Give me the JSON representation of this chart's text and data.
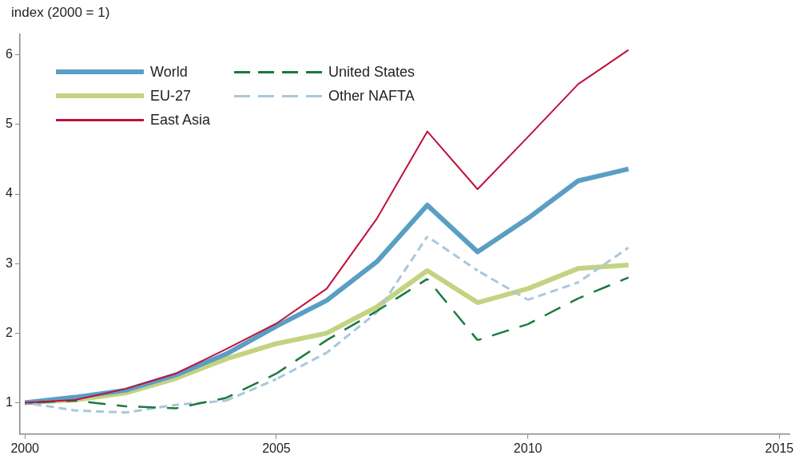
{
  "chart_data": {
    "type": "line",
    "ylabel": "index (2000 = 1)",
    "x": [
      2000,
      2001,
      2002,
      2003,
      2004,
      2005,
      2006,
      2007,
      2008,
      2009,
      2010,
      2011,
      2012
    ],
    "xlim": [
      1999.9,
      2015.2
    ],
    "xticks": [
      2000,
      2005,
      2010,
      2015
    ],
    "ylim": [
      0.55,
      6.3
    ],
    "yticks": [
      1,
      2,
      3,
      4,
      5,
      6
    ],
    "grid": false,
    "legend": "top left",
    "marker": "none",
    "series": [
      {
        "name": "World",
        "color": "#5b9ec4",
        "line_style": "solid",
        "values": [
          1.0,
          1.08,
          1.18,
          1.4,
          1.7,
          2.1,
          2.47,
          3.03,
          3.84,
          3.17,
          3.65,
          4.19,
          4.36
        ]
      },
      {
        "name": "EU-27",
        "color": "#c3d382",
        "line_style": "solid",
        "values": [
          1.0,
          1.04,
          1.14,
          1.35,
          1.63,
          1.85,
          2.0,
          2.38,
          2.9,
          2.44,
          2.64,
          2.93,
          2.98
        ]
      },
      {
        "name": "East Asia",
        "color": "#c0103c",
        "line_style": "solid",
        "values": [
          1.0,
          1.04,
          1.2,
          1.42,
          1.77,
          2.14,
          2.64,
          3.65,
          4.9,
          4.07,
          4.82,
          5.58,
          6.07
        ]
      },
      {
        "name": "United States",
        "color": "#1a7a3e",
        "line_style": "dashed",
        "values": [
          1.0,
          1.03,
          0.95,
          0.92,
          1.07,
          1.42,
          1.9,
          2.32,
          2.78,
          1.9,
          2.13,
          2.5,
          2.8
        ]
      },
      {
        "name": "Other NAFTA",
        "color": "#a8c8dc",
        "line_style": "dashed",
        "values": [
          1.0,
          0.89,
          0.86,
          0.97,
          1.03,
          1.34,
          1.72,
          2.3,
          3.39,
          2.9,
          2.48,
          2.73,
          3.23
        ]
      }
    ]
  }
}
